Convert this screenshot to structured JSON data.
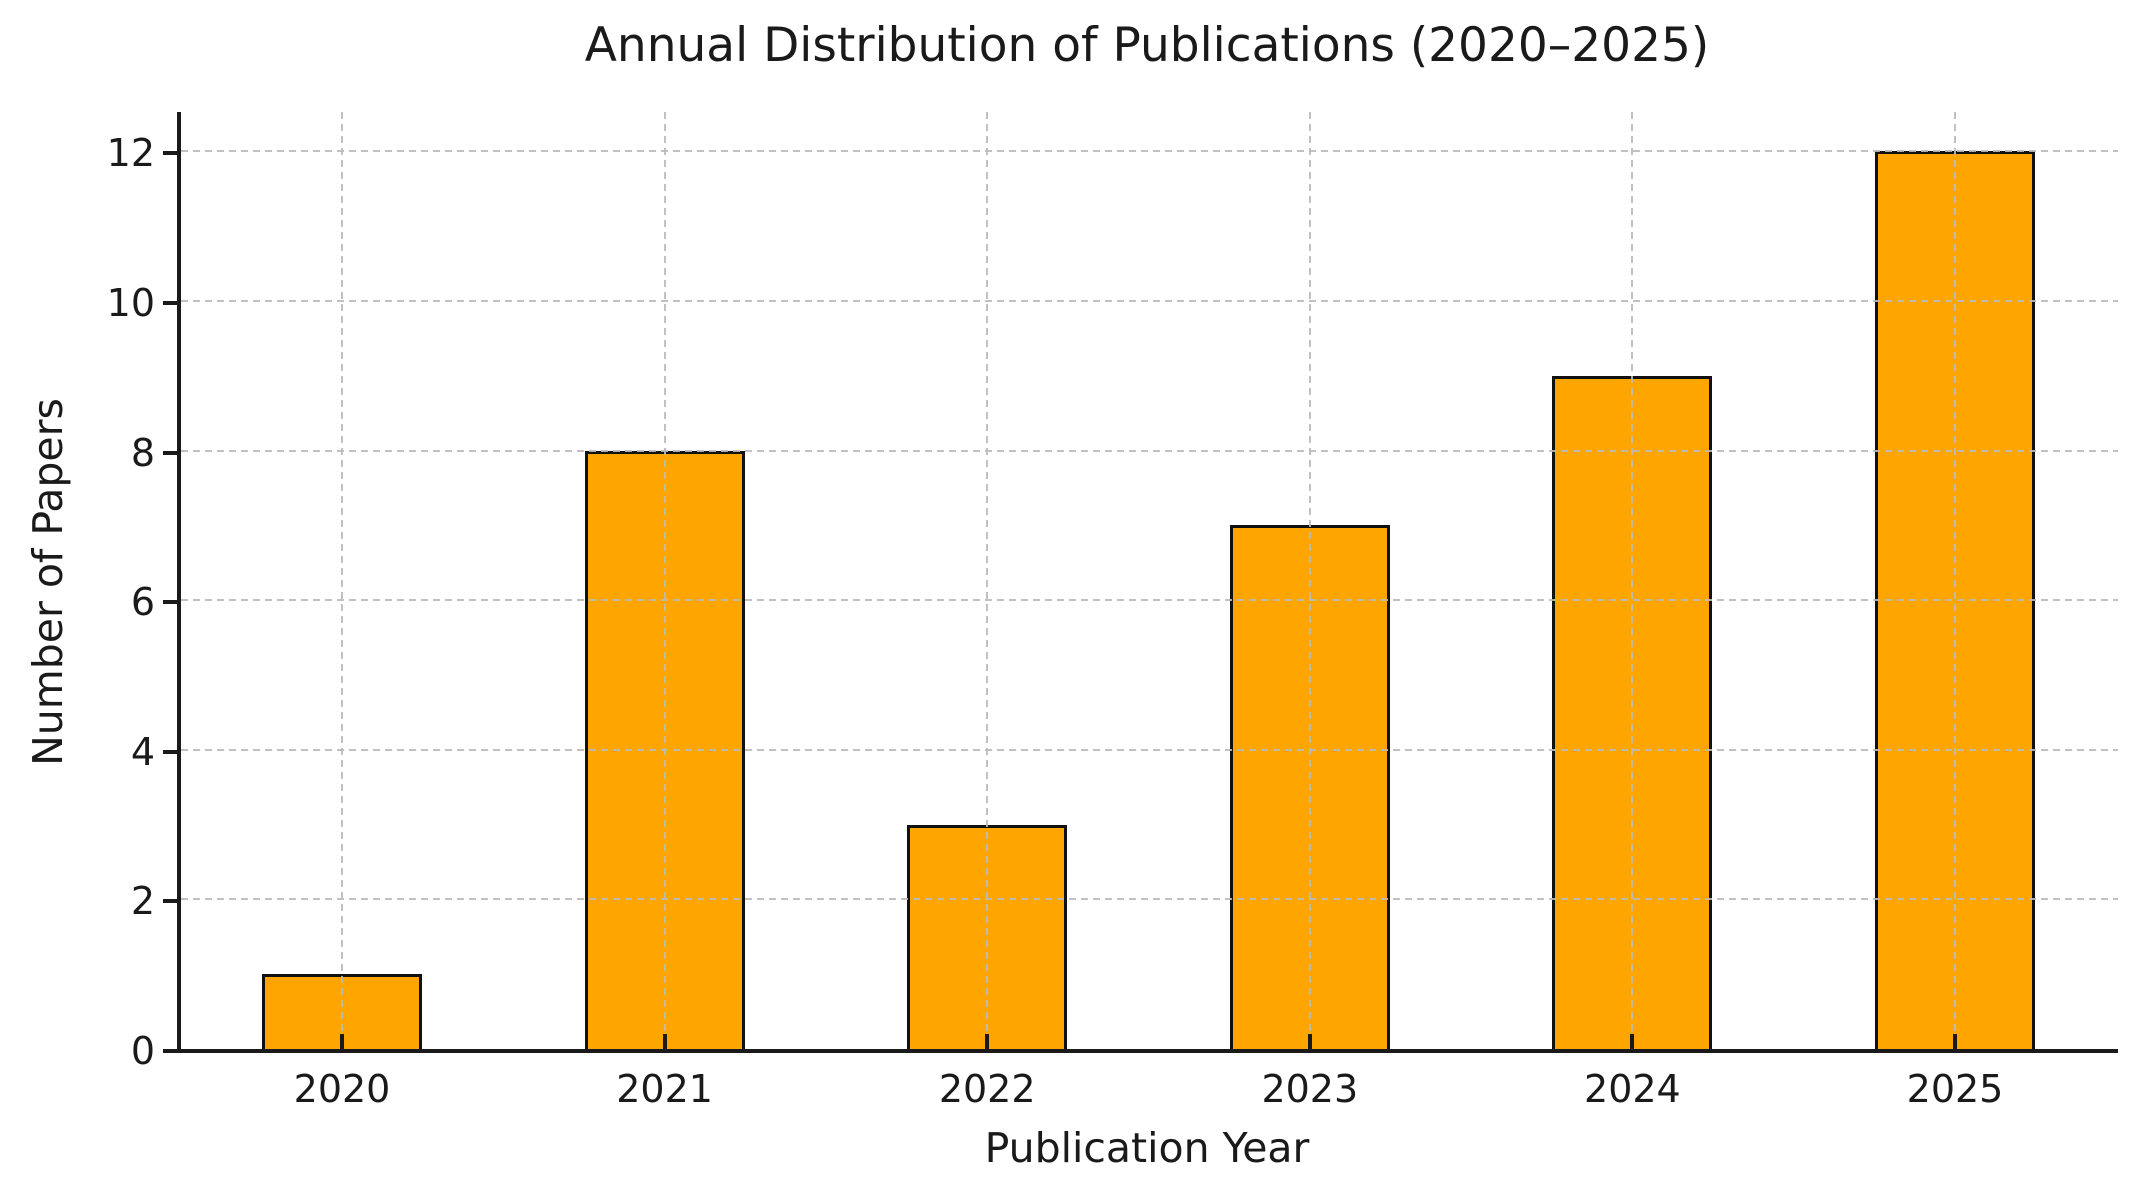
{
  "chart_data": {
    "type": "bar",
    "title": "Annual Distribution of Publications (2020–2025)",
    "xlabel": "Publication Year",
    "ylabel": "Number of Papers",
    "categories": [
      "2020",
      "2021",
      "2022",
      "2023",
      "2024",
      "2025"
    ],
    "values": [
      1,
      8,
      3,
      7,
      9,
      12
    ],
    "yticks": [
      0,
      2,
      4,
      6,
      8,
      10,
      12
    ],
    "ylim": [
      0,
      12.55
    ],
    "grid": {
      "visible": true,
      "style": "dashed",
      "axes": "both",
      "drawn_above_bars": true
    },
    "legend": null,
    "colors": {
      "bar_fill": "#FFA500",
      "bar_edge": "#111111",
      "grid": "#bababa",
      "axis": "#1a1a1a",
      "text": "#1a1a1a",
      "background": "#ffffff"
    }
  }
}
